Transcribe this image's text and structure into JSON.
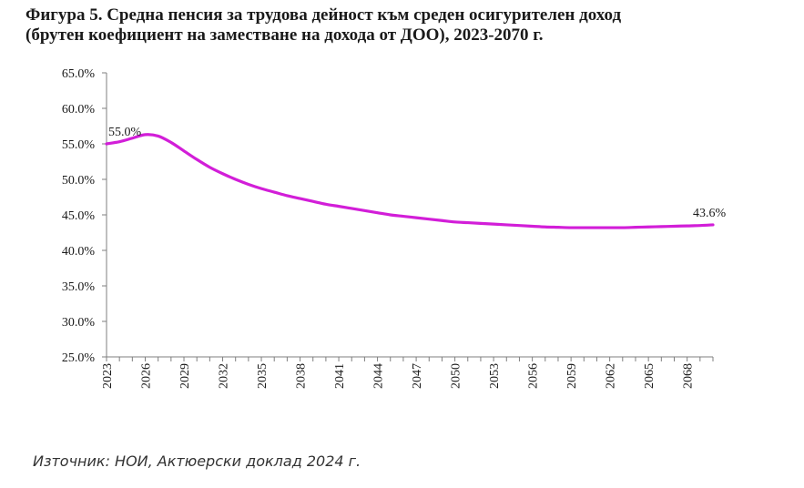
{
  "title": {
    "line1": "Фигура 5. Средна пенсия за трудова дейност към среден осигурителен доход",
    "line2": "(брутен коефициент на заместване на дохода от ДОО), 2023-2070 г."
  },
  "source": "Източник: НОИ, Актюерски доклад 2024 г.",
  "chart_data": {
    "type": "line",
    "ylim": [
      25,
      65
    ],
    "xlim": [
      2023,
      2070
    ],
    "y_ticks": [
      "25.0%",
      "30.0%",
      "35.0%",
      "40.0%",
      "45.0%",
      "50.0%",
      "55.0%",
      "60.0%",
      "65.0%"
    ],
    "x_ticks": [
      "2023",
      "2026",
      "2029",
      "2032",
      "2035",
      "2038",
      "2041",
      "2044",
      "2047",
      "2050",
      "2053",
      "2056",
      "2059",
      "2062",
      "2065",
      "2068"
    ],
    "grid": false,
    "line_color": "#d21ed8",
    "series": [
      {
        "x": [
          2023,
          2024,
          2025,
          2026,
          2027,
          2028,
          2029,
          2030,
          2031,
          2032,
          2033,
          2034,
          2035,
          2036,
          2037,
          2038,
          2039,
          2040,
          2041,
          2042,
          2043,
          2044,
          2045,
          2046,
          2047,
          2048,
          2049,
          2050,
          2051,
          2052,
          2053,
          2054,
          2055,
          2056,
          2057,
          2058,
          2059,
          2060,
          2061,
          2062,
          2063,
          2064,
          2065,
          2066,
          2067,
          2068,
          2069,
          2070
        ],
        "y": [
          55.0,
          55.3,
          55.8,
          56.3,
          56.1,
          55.2,
          54.0,
          52.8,
          51.7,
          50.8,
          50.0,
          49.3,
          48.7,
          48.2,
          47.7,
          47.3,
          46.9,
          46.5,
          46.2,
          45.9,
          45.6,
          45.3,
          45.0,
          44.8,
          44.6,
          44.4,
          44.2,
          44.0,
          43.9,
          43.8,
          43.7,
          43.6,
          43.5,
          43.4,
          43.3,
          43.25,
          43.2,
          43.2,
          43.2,
          43.2,
          43.2,
          43.25,
          43.3,
          43.35,
          43.4,
          43.45,
          43.5,
          43.6
        ]
      }
    ],
    "annotations": [
      {
        "x": 2023,
        "y": 55.0,
        "label": "55.0%"
      },
      {
        "x": 2070,
        "y": 43.6,
        "label": "43.6%"
      }
    ]
  }
}
